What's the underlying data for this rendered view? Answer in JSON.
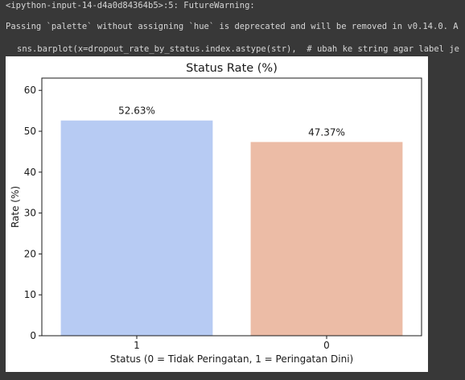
{
  "console": {
    "lines": [
      "<ipython-input-14-d4a0d84364b5>:5: FutureWarning:",
      "Passing `palette` without assigning `hue` is deprecated and will be removed in v0.14.0. A",
      "sns.barplot(x=dropout_rate_by_status.index.astype(str),  # ubah ke string agar label je"
    ]
  },
  "colors": {
    "page_background": "#383838",
    "console_text": "#d6d6d6",
    "figure_background": "#ffffff",
    "bar_1": "#b7cbf3",
    "bar_0": "#ecbca6"
  },
  "chart_data": {
    "type": "bar",
    "title": "Status Rate (%)",
    "xlabel": "Status (0 = Tidak Peringatan, 1 = Peringatan Dini)",
    "ylabel": "Rate (%)",
    "categories": [
      "1",
      "0"
    ],
    "values": [
      52.63,
      47.37
    ],
    "data_labels": [
      "52.63%",
      "47.37%"
    ],
    "colors": [
      "#b7cbf3",
      "#ecbca6"
    ],
    "ylim": [
      0,
      63
    ],
    "yticks": [
      0,
      10,
      20,
      30,
      40,
      50,
      60
    ],
    "grid": false,
    "legend": "none"
  }
}
